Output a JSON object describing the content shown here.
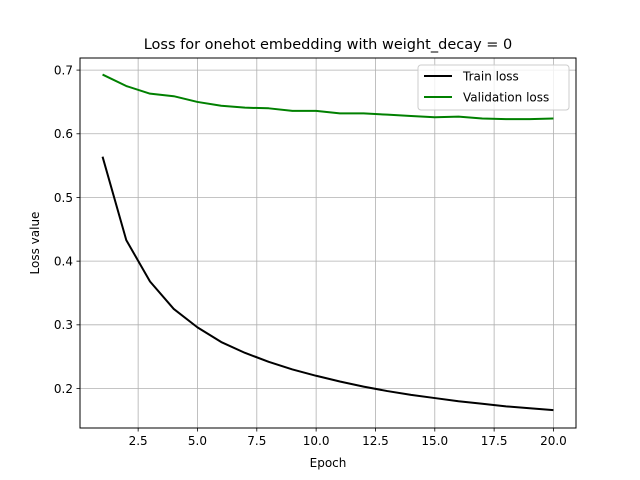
{
  "chart_data": {
    "type": "line",
    "title": "Loss for onehot embedding with weight_decay = 0",
    "xlabel": "Epoch",
    "ylabel": "Loss value",
    "xlim": [
      0.05,
      20.95
    ],
    "ylim": [
      0.138,
      0.719
    ],
    "xticks": [
      2.5,
      5.0,
      7.5,
      10.0,
      12.5,
      15.0,
      17.5,
      20.0
    ],
    "xtick_labels": [
      "2.5",
      "5.0",
      "7.5",
      "10.0",
      "12.5",
      "15.0",
      "17.5",
      "20.0"
    ],
    "yticks": [
      0.2,
      0.3,
      0.4,
      0.5,
      0.6,
      0.7
    ],
    "ytick_labels": [
      "0.2",
      "0.3",
      "0.4",
      "0.5",
      "0.6",
      "0.7"
    ],
    "grid": true,
    "legend_position": "top-right",
    "x": [
      1,
      2,
      3,
      4,
      5,
      6,
      7,
      8,
      9,
      10,
      11,
      12,
      13,
      14,
      15,
      16,
      17,
      18,
      19,
      20
    ],
    "series": [
      {
        "name": "Train loss",
        "color": "#000000",
        "values": [
          0.564,
          0.433,
          0.368,
          0.325,
          0.296,
          0.273,
          0.256,
          0.242,
          0.23,
          0.22,
          0.211,
          0.203,
          0.196,
          0.19,
          0.185,
          0.18,
          0.176,
          0.172,
          0.169,
          0.166
        ]
      },
      {
        "name": "Validation loss",
        "color": "#008000",
        "values": [
          0.693,
          0.675,
          0.663,
          0.659,
          0.65,
          0.644,
          0.641,
          0.64,
          0.636,
          0.636,
          0.632,
          0.632,
          0.63,
          0.628,
          0.626,
          0.627,
          0.624,
          0.623,
          0.623,
          0.624
        ]
      }
    ]
  }
}
